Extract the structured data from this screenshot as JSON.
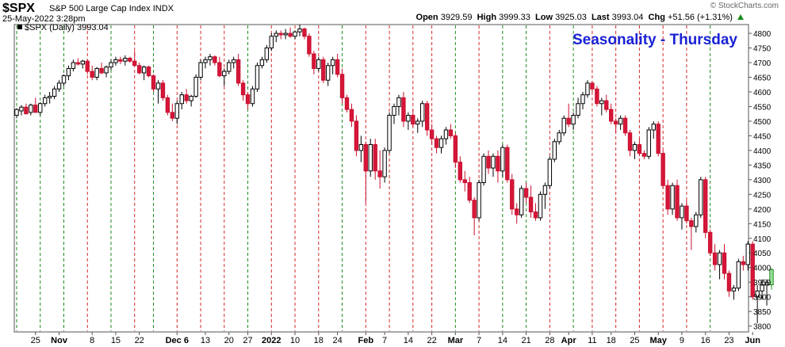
{
  "header": {
    "symbol": "$SPX",
    "name": "S&P 500 Large Cap Index",
    "exchange": "INDX",
    "datetime": "25-May-2022 3:28pm",
    "credit": "© StockCharts.com",
    "open_label": "Open",
    "open": "3929.59",
    "high_label": "High",
    "high": "3999.33",
    "low_label": "Low",
    "low": "3925.03",
    "last_label": "Last",
    "last": "3993.04",
    "chg_label": "Chg",
    "chg": "+51.56 (+1.31%)",
    "trend_icon": "up-arrow-icon"
  },
  "chart_data": {
    "type": "candlestick",
    "title": "Seasonality - Thursday",
    "legend": "$SPX (Daily) 3993.04",
    "ylim": [
      3780,
      4830
    ],
    "yticks": [
      3800,
      3850,
      3900,
      3950,
      4000,
      4050,
      4100,
      4150,
      4200,
      4250,
      4300,
      4350,
      4400,
      4450,
      4500,
      4550,
      4600,
      4650,
      4700,
      4750,
      4800
    ],
    "xticks": [
      {
        "i": 4,
        "label": "25"
      },
      {
        "i": 9,
        "label": "Nov"
      },
      {
        "i": 16,
        "label": "8"
      },
      {
        "i": 21,
        "label": "15"
      },
      {
        "i": 26,
        "label": "22"
      },
      {
        "i": 34,
        "label": "Dec 6"
      },
      {
        "i": 40,
        "label": "13"
      },
      {
        "i": 45,
        "label": "20"
      },
      {
        "i": 49,
        "label": "27"
      },
      {
        "i": 54,
        "label": "2022"
      },
      {
        "i": 59,
        "label": "10"
      },
      {
        "i": 64,
        "label": "18"
      },
      {
        "i": 68,
        "label": "24"
      },
      {
        "i": 74,
        "label": "Feb"
      },
      {
        "i": 78,
        "label": "7"
      },
      {
        "i": 83,
        "label": "14"
      },
      {
        "i": 88,
        "label": "22"
      },
      {
        "i": 93,
        "label": "Mar"
      },
      {
        "i": 98,
        "label": "7"
      },
      {
        "i": 103,
        "label": "14"
      },
      {
        "i": 108,
        "label": "21"
      },
      {
        "i": 113,
        "label": "28"
      },
      {
        "i": 117,
        "label": "Apr"
      },
      {
        "i": 122,
        "label": "11"
      },
      {
        "i": 126,
        "label": "18"
      },
      {
        "i": 131,
        "label": "25"
      },
      {
        "i": 136,
        "label": "May"
      },
      {
        "i": 141,
        "label": "9"
      },
      {
        "i": 146,
        "label": "16"
      },
      {
        "i": 151,
        "label": "23"
      },
      {
        "i": 156,
        "label": "Jun"
      }
    ],
    "thursday_vlines": [
      {
        "i": 0,
        "color": "green"
      },
      {
        "i": 5,
        "color": "green"
      },
      {
        "i": 10,
        "color": "green"
      },
      {
        "i": 15,
        "color": "red"
      },
      {
        "i": 20,
        "color": "green"
      },
      {
        "i": 25,
        "color": "red"
      },
      {
        "i": 29,
        "color": "green"
      },
      {
        "i": 34,
        "color": "red"
      },
      {
        "i": 39,
        "color": "red"
      },
      {
        "i": 44,
        "color": "red"
      },
      {
        "i": 49,
        "color": "green"
      },
      {
        "i": 54,
        "color": "red"
      },
      {
        "i": 59,
        "color": "red"
      },
      {
        "i": 64,
        "color": "red"
      },
      {
        "i": 69,
        "color": "green"
      },
      {
        "i": 74,
        "color": "red"
      },
      {
        "i": 79,
        "color": "red"
      },
      {
        "i": 84,
        "color": "red"
      },
      {
        "i": 88,
        "color": "red"
      },
      {
        "i": 93,
        "color": "green"
      },
      {
        "i": 98,
        "color": "red"
      },
      {
        "i": 103,
        "color": "green"
      },
      {
        "i": 108,
        "color": "green"
      },
      {
        "i": 113,
        "color": "red"
      },
      {
        "i": 118,
        "color": "green"
      },
      {
        "i": 122,
        "color": "red"
      },
      {
        "i": 127,
        "color": "red"
      },
      {
        "i": 132,
        "color": "red"
      },
      {
        "i": 137,
        "color": "red"
      },
      {
        "i": 142,
        "color": "red"
      },
      {
        "i": 147,
        "color": "green"
      }
    ],
    "ohlc": [
      [
        4520,
        4545,
        4510,
        4540
      ],
      [
        4535,
        4555,
        4520,
        4548
      ],
      [
        4548,
        4560,
        4530,
        4525
      ],
      [
        4530,
        4560,
        4520,
        4555
      ],
      [
        4555,
        4580,
        4540,
        4530
      ],
      [
        4530,
        4565,
        4520,
        4560
      ],
      [
        4560,
        4590,
        4550,
        4580
      ],
      [
        4580,
        4600,
        4560,
        4585
      ],
      [
        4585,
        4620,
        4575,
        4610
      ],
      [
        4610,
        4640,
        4600,
        4630
      ],
      [
        4630,
        4660,
        4620,
        4655
      ],
      [
        4655,
        4690,
        4640,
        4680
      ],
      [
        4680,
        4710,
        4670,
        4700
      ],
      [
        4700,
        4715,
        4690,
        4695
      ],
      [
        4695,
        4710,
        4680,
        4705
      ],
      [
        4705,
        4710,
        4660,
        4670
      ],
      [
        4670,
        4690,
        4640,
        4650
      ],
      [
        4650,
        4685,
        4640,
        4680
      ],
      [
        4680,
        4700,
        4660,
        4665
      ],
      [
        4665,
        4690,
        4650,
        4685
      ],
      [
        4685,
        4710,
        4675,
        4700
      ],
      [
        4700,
        4720,
        4690,
        4710
      ],
      [
        4710,
        4720,
        4695,
        4705
      ],
      [
        4705,
        4725,
        4690,
        4715
      ],
      [
        4715,
        4720,
        4700,
        4705
      ],
      [
        4705,
        4740,
        4690,
        4690
      ],
      [
        4690,
        4700,
        4660,
        4665
      ],
      [
        4665,
        4690,
        4640,
        4685
      ],
      [
        4685,
        4690,
        4650,
        4655
      ],
      [
        4655,
        4660,
        4600,
        4610
      ],
      [
        4610,
        4640,
        4560,
        4630
      ],
      [
        4630,
        4640,
        4570,
        4580
      ],
      [
        4580,
        4590,
        4520,
        4530
      ],
      [
        4530,
        4560,
        4500,
        4510
      ],
      [
        4510,
        4570,
        4490,
        4560
      ],
      [
        4560,
        4600,
        4540,
        4590
      ],
      [
        4590,
        4610,
        4560,
        4570
      ],
      [
        4570,
        4590,
        4550,
        4585
      ],
      [
        4585,
        4660,
        4580,
        4650
      ],
      [
        4650,
        4710,
        4640,
        4700
      ],
      [
        4700,
        4720,
        4680,
        4710
      ],
      [
        4710,
        4730,
        4690,
        4720
      ],
      [
        4720,
        4725,
        4690,
        4700
      ],
      [
        4700,
        4720,
        4650,
        4655
      ],
      [
        4655,
        4680,
        4620,
        4670
      ],
      [
        4670,
        4710,
        4660,
        4700
      ],
      [
        4700,
        4720,
        4680,
        4710
      ],
      [
        4710,
        4730,
        4620,
        4630
      ],
      [
        4630,
        4640,
        4570,
        4590
      ],
      [
        4590,
        4600,
        4540,
        4560
      ],
      [
        4560,
        4620,
        4550,
        4610
      ],
      [
        4610,
        4700,
        4600,
        4690
      ],
      [
        4690,
        4720,
        4680,
        4710
      ],
      [
        4710,
        4760,
        4700,
        4750
      ],
      [
        4750,
        4800,
        4740,
        4790
      ],
      [
        4790,
        4810,
        4770,
        4800
      ],
      [
        4800,
        4810,
        4780,
        4795
      ],
      [
        4795,
        4815,
        4780,
        4800
      ],
      [
        4800,
        4820,
        4785,
        4790
      ],
      [
        4790,
        4810,
        4780,
        4805
      ],
      [
        4805,
        4830,
        4790,
        4815
      ],
      [
        4815,
        4820,
        4780,
        4790
      ],
      [
        4790,
        4800,
        4720,
        4730
      ],
      [
        4730,
        4740,
        4660,
        4680
      ],
      [
        4680,
        4720,
        4670,
        4710
      ],
      [
        4710,
        4720,
        4630,
        4640
      ],
      [
        4640,
        4700,
        4620,
        4690
      ],
      [
        4690,
        4720,
        4660,
        4710
      ],
      [
        4710,
        4730,
        4650,
        4660
      ],
      [
        4660,
        4680,
        4560,
        4580
      ],
      [
        4580,
        4590,
        4530,
        4540
      ],
      [
        4540,
        4560,
        4480,
        4500
      ],
      [
        4500,
        4520,
        4380,
        4400
      ],
      [
        4400,
        4450,
        4360,
        4420
      ],
      [
        4420,
        4430,
        4220,
        4330
      ],
      [
        4330,
        4440,
        4310,
        4420
      ],
      [
        4420,
        4440,
        4300,
        4330
      ],
      [
        4330,
        4400,
        4270,
        4310
      ],
      [
        4310,
        4410,
        4290,
        4400
      ],
      [
        4400,
        4530,
        4390,
        4520
      ],
      [
        4520,
        4560,
        4490,
        4550
      ],
      [
        4550,
        4590,
        4520,
        4580
      ],
      [
        4580,
        4600,
        4480,
        4500
      ],
      [
        4500,
        4530,
        4470,
        4520
      ],
      [
        4520,
        4540,
        4480,
        4490
      ],
      [
        4490,
        4510,
        4460,
        4500
      ],
      [
        4500,
        4570,
        4480,
        4560
      ],
      [
        4560,
        4570,
        4450,
        4470
      ],
      [
        4470,
        4490,
        4420,
        4440
      ],
      [
        4440,
        4450,
        4390,
        4410
      ],
      [
        4410,
        4450,
        4390,
        4440
      ],
      [
        4440,
        4480,
        4420,
        4470
      ],
      [
        4470,
        4490,
        4440,
        4450
      ],
      [
        4450,
        4460,
        4340,
        4360
      ],
      [
        4360,
        4380,
        4290,
        4300
      ],
      [
        4300,
        4330,
        4260,
        4290
      ],
      [
        4290,
        4310,
        4220,
        4230
      ],
      [
        4230,
        4240,
        4110,
        4170
      ],
      [
        4170,
        4300,
        4160,
        4290
      ],
      [
        4290,
        4390,
        4280,
        4380
      ],
      [
        4380,
        4400,
        4320,
        4340
      ],
      [
        4340,
        4390,
        4310,
        4380
      ],
      [
        4380,
        4400,
        4290,
        4330
      ],
      [
        4330,
        4420,
        4310,
        4410
      ],
      [
        4410,
        4420,
        4290,
        4300
      ],
      [
        4300,
        4320,
        4180,
        4200
      ],
      [
        4200,
        4220,
        4150,
        4180
      ],
      [
        4180,
        4280,
        4170,
        4270
      ],
      [
        4270,
        4290,
        4220,
        4240
      ],
      [
        4240,
        4280,
        4170,
        4190
      ],
      [
        4190,
        4220,
        4160,
        4170
      ],
      [
        4170,
        4260,
        4160,
        4250
      ],
      [
        4250,
        4290,
        4200,
        4280
      ],
      [
        4280,
        4380,
        4270,
        4370
      ],
      [
        4370,
        4440,
        4360,
        4430
      ],
      [
        4430,
        4470,
        4420,
        4460
      ],
      [
        4460,
        4520,
        4450,
        4510
      ],
      [
        4510,
        4560,
        4480,
        4490
      ],
      [
        4490,
        4530,
        4470,
        4520
      ],
      [
        4520,
        4580,
        4510,
        4560
      ],
      [
        4560,
        4600,
        4540,
        4590
      ],
      [
        4590,
        4640,
        4580,
        4630
      ],
      [
        4630,
        4637,
        4600,
        4610
      ],
      [
        4610,
        4620,
        4550,
        4560
      ],
      [
        4560,
        4580,
        4520,
        4570
      ],
      [
        4570,
        4590,
        4530,
        4540
      ],
      [
        4540,
        4560,
        4490,
        4500
      ],
      [
        4500,
        4510,
        4460,
        4490
      ],
      [
        4490,
        4520,
        4470,
        4510
      ],
      [
        4510,
        4520,
        4450,
        4460
      ],
      [
        4460,
        4470,
        4380,
        4400
      ],
      [
        4400,
        4430,
        4370,
        4420
      ],
      [
        4420,
        4440,
        4380,
        4390
      ],
      [
        4390,
        4400,
        4370,
        4380
      ],
      [
        4380,
        4480,
        4370,
        4470
      ],
      [
        4470,
        4500,
        4440,
        4490
      ],
      [
        4490,
        4500,
        4380,
        4390
      ],
      [
        4390,
        4400,
        4270,
        4280
      ],
      [
        4280,
        4300,
        4180,
        4200
      ],
      [
        4200,
        4290,
        4180,
        4280
      ],
      [
        4280,
        4300,
        4160,
        4170
      ],
      [
        4170,
        4220,
        4130,
        4210
      ],
      [
        4210,
        4230,
        4150,
        4160
      ],
      [
        4160,
        4170,
        4060,
        4140
      ],
      [
        4140,
        4190,
        4120,
        4180
      ],
      [
        4180,
        4310,
        4170,
        4300
      ],
      [
        4300,
        4310,
        4100,
        4120
      ],
      [
        4120,
        4130,
        4040,
        4050
      ],
      [
        4050,
        4080,
        3990,
        4010
      ],
      [
        4010,
        4060,
        3960,
        4050
      ],
      [
        4050,
        4080,
        3960,
        3980
      ],
      [
        3980,
        3990,
        3900,
        3920
      ],
      [
        3920,
        3940,
        3890,
        3930
      ],
      [
        3930,
        4030,
        3920,
        4020
      ],
      [
        4020,
        4040,
        3990,
        4010
      ],
      [
        4010,
        4090,
        3990,
        4080
      ],
      [
        4080,
        4090,
        3890,
        3900
      ],
      [
        3900,
        3940,
        3810,
        3920
      ],
      [
        3920,
        3960,
        3890,
        3940
      ],
      [
        3940,
        3960,
        3870,
        3950
      ],
      [
        3941,
        3999,
        3925,
        3993
      ]
    ]
  }
}
